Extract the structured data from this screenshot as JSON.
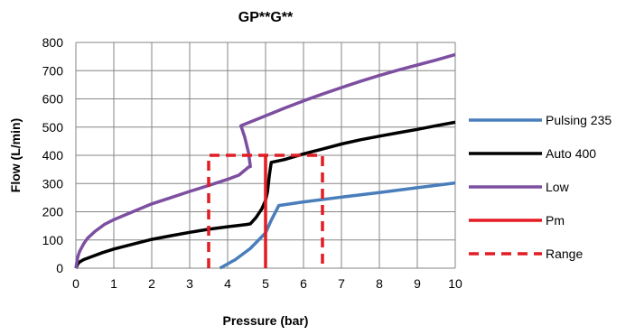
{
  "chart_data": {
    "type": "line",
    "title": "GP**G**",
    "xlabel": "Pressure (bar)",
    "ylabel": "Flow (L/min)",
    "xlim": [
      0,
      10
    ],
    "ylim": [
      0,
      800
    ],
    "xticks": [
      0,
      1,
      2,
      3,
      4,
      5,
      6,
      7,
      8,
      9,
      10
    ],
    "yticks": [
      0,
      100,
      200,
      300,
      400,
      500,
      600,
      700,
      800
    ],
    "grid": true,
    "legend_position": "right",
    "series": [
      {
        "name": "Pulsing 235",
        "color": "#4a7ebb",
        "dash": false,
        "points": [
          [
            3.8,
            0
          ],
          [
            4.2,
            30
          ],
          [
            4.6,
            70
          ],
          [
            5.0,
            125
          ],
          [
            5.15,
            170
          ],
          [
            5.35,
            222
          ],
          [
            6,
            235
          ],
          [
            7,
            252
          ],
          [
            8,
            268
          ],
          [
            9,
            285
          ],
          [
            10,
            302
          ]
        ]
      },
      {
        "name": "Auto 400",
        "color": "#000000",
        "dash": false,
        "points": [
          [
            0,
            0
          ],
          [
            0.05,
            15
          ],
          [
            0.1,
            22
          ],
          [
            0.2,
            30
          ],
          [
            0.4,
            40
          ],
          [
            0.7,
            55
          ],
          [
            1,
            68
          ],
          [
            1.5,
            85
          ],
          [
            2,
            102
          ],
          [
            2.5,
            115
          ],
          [
            3,
            127
          ],
          [
            3.5,
            138
          ],
          [
            4,
            147
          ],
          [
            4.5,
            155
          ],
          [
            4.6,
            157
          ],
          [
            4.75,
            180
          ],
          [
            4.9,
            210
          ],
          [
            5.0,
            240
          ],
          [
            5.05,
            270
          ],
          [
            5.1,
            330
          ],
          [
            5.15,
            375
          ],
          [
            5.5,
            385
          ],
          [
            6,
            405
          ],
          [
            6.5,
            422
          ],
          [
            7,
            440
          ],
          [
            7.5,
            455
          ],
          [
            8,
            468
          ],
          [
            8.5,
            480
          ],
          [
            9,
            492
          ],
          [
            9.5,
            505
          ],
          [
            10,
            517
          ]
        ]
      },
      {
        "name": "Low",
        "color": "#7d4fa0",
        "dash": false,
        "points": [
          [
            0,
            0
          ],
          [
            0.05,
            40
          ],
          [
            0.1,
            60
          ],
          [
            0.2,
            85
          ],
          [
            0.3,
            105
          ],
          [
            0.5,
            130
          ],
          [
            0.75,
            155
          ],
          [
            1,
            172
          ],
          [
            1.5,
            200
          ],
          [
            2,
            228
          ],
          [
            2.5,
            250
          ],
          [
            3,
            272
          ],
          [
            3.5,
            293
          ],
          [
            4,
            315
          ],
          [
            4.3,
            330
          ],
          [
            4.55,
            358
          ],
          [
            4.6,
            360
          ],
          [
            4.55,
            410
          ],
          [
            4.45,
            465
          ],
          [
            4.35,
            505
          ],
          [
            5,
            540
          ],
          [
            5.5,
            567
          ],
          [
            6,
            593
          ],
          [
            6.5,
            617
          ],
          [
            7,
            640
          ],
          [
            7.5,
            662
          ],
          [
            8,
            683
          ],
          [
            8.5,
            702
          ],
          [
            9,
            720
          ],
          [
            9.5,
            738
          ],
          [
            10,
            757
          ]
        ]
      },
      {
        "name": "Pm",
        "color": "#e31b23",
        "dash": false,
        "points": [
          [
            5,
            0
          ],
          [
            5,
            400
          ]
        ]
      },
      {
        "name": "Range",
        "color": "#e31b23",
        "dash": true,
        "points": [
          [
            3.5,
            0
          ],
          [
            3.5,
            400
          ],
          [
            6.5,
            400
          ],
          [
            6.5,
            0
          ]
        ]
      }
    ]
  }
}
